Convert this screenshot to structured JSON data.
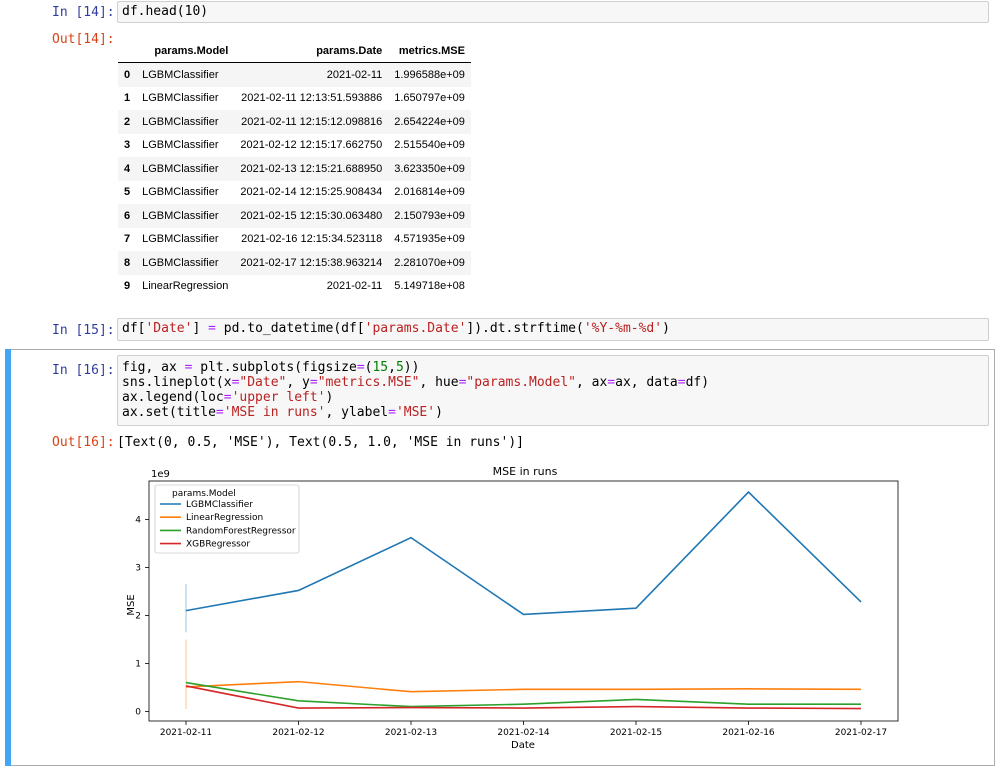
{
  "cells": {
    "c14": {
      "in_prompt": "In [14]:",
      "code": "df.head(10)",
      "out_prompt": "Out[14]:"
    },
    "c15": {
      "in_prompt": "In [15]:"
    },
    "c16": {
      "in_prompt": "In [16]:",
      "out_prompt": "Out[16]:",
      "output_text": "[Text(0, 0.5, 'MSE'), Text(0.5, 1.0, 'MSE in runs')]"
    }
  },
  "table": {
    "columns": [
      "params.Model",
      "params.Date",
      "metrics.MSE"
    ],
    "rows": [
      {
        "index": "0",
        "model": "LGBMClassifier",
        "date": "2021-02-11",
        "mse": "1.996588e+09"
      },
      {
        "index": "1",
        "model": "LGBMClassifier",
        "date": "2021-02-11 12:13:51.593886",
        "mse": "1.650797e+09"
      },
      {
        "index": "2",
        "model": "LGBMClassifier",
        "date": "2021-02-11 12:15:12.098816",
        "mse": "2.654224e+09"
      },
      {
        "index": "3",
        "model": "LGBMClassifier",
        "date": "2021-02-12 12:15:17.662750",
        "mse": "2.515540e+09"
      },
      {
        "index": "4",
        "model": "LGBMClassifier",
        "date": "2021-02-13 12:15:21.688950",
        "mse": "3.623350e+09"
      },
      {
        "index": "5",
        "model": "LGBMClassifier",
        "date": "2021-02-14 12:15:25.908434",
        "mse": "2.016814e+09"
      },
      {
        "index": "6",
        "model": "LGBMClassifier",
        "date": "2021-02-15 12:15:30.063480",
        "mse": "2.150793e+09"
      },
      {
        "index": "7",
        "model": "LGBMClassifier",
        "date": "2021-02-16 12:15:34.523118",
        "mse": "4.571935e+09"
      },
      {
        "index": "8",
        "model": "LGBMClassifier",
        "date": "2021-02-17 12:15:38.963214",
        "mse": "2.281070e+09"
      },
      {
        "index": "9",
        "model": "LinearRegression",
        "date": "2021-02-11",
        "mse": "5.149718e+08"
      }
    ]
  },
  "chart_data": {
    "type": "line",
    "title": "MSE in runs",
    "xlabel": "Date",
    "ylabel": "MSE",
    "y_offset_label": "1e9",
    "x": [
      "2021-02-11",
      "2021-02-12",
      "2021-02-13",
      "2021-02-14",
      "2021-02-15",
      "2021-02-16",
      "2021-02-17"
    ],
    "ylim": [
      -0.2,
      4.8
    ],
    "yticks": [
      0,
      1,
      2,
      3,
      4
    ],
    "legend_title": "params.Model",
    "legend_loc": "upper left",
    "grid": false,
    "series": [
      {
        "name": "LGBMClassifier",
        "color": "#1f77b4",
        "values": [
          2.1,
          2.52,
          3.62,
          2.02,
          2.15,
          4.57,
          2.28
        ],
        "ci": [
          1.65,
          2.65
        ]
      },
      {
        "name": "LinearRegression",
        "color": "#ff7f0e",
        "values": [
          0.51,
          0.62,
          0.41,
          0.46,
          0.46,
          0.47,
          0.46
        ],
        "ci": [
          0.05,
          1.5
        ]
      },
      {
        "name": "RandomForestRegressor",
        "color": "#2ca02c",
        "values": [
          0.6,
          0.22,
          0.1,
          0.15,
          0.25,
          0.15,
          0.15
        ]
      },
      {
        "name": "XGBRegressor",
        "color": "#d62728",
        "values": [
          0.53,
          0.07,
          0.08,
          0.07,
          0.1,
          0.07,
          0.06
        ]
      }
    ]
  }
}
